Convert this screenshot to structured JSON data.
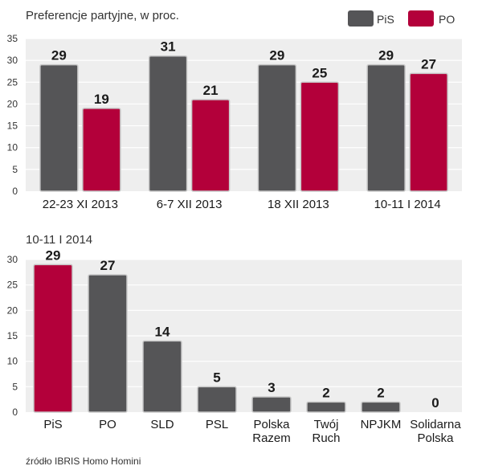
{
  "colors": {
    "pis": "#555557",
    "po": "#b3003a",
    "panel": "#eeeeee",
    "grid": "#ffffff",
    "bar_stroke": "#c8c8c8"
  },
  "source": "źródło IBRIS Homo Homini",
  "chart_data": [
    {
      "type": "bar",
      "title": "Preferencje partyjne, w proc.",
      "legend": [
        {
          "name": "PiS",
          "color": "#555557"
        },
        {
          "name": "PO",
          "color": "#b3003a"
        }
      ],
      "legend_position": "top-right",
      "categories": [
        "22-23 XI 2013",
        "6-7 XII 2013",
        "18 XII 2013",
        "10-11 I 2014"
      ],
      "series": [
        {
          "name": "PiS",
          "values": [
            29,
            31,
            29,
            29
          ]
        },
        {
          "name": "PO",
          "values": [
            19,
            21,
            25,
            27
          ]
        }
      ],
      "value_labels": [
        [
          "29",
          "31",
          "29",
          "29"
        ],
        [
          "19",
          "21",
          "25",
          "27"
        ]
      ],
      "yticks": [
        "0",
        "5",
        "10",
        "15",
        "20",
        "25",
        "30",
        "35"
      ],
      "ylim": [
        0,
        35
      ],
      "grid": true,
      "xlabel": "",
      "ylabel": ""
    },
    {
      "type": "bar",
      "title": "10-11 I 2014",
      "categories": [
        [
          "PiS"
        ],
        [
          "PO"
        ],
        [
          "SLD"
        ],
        [
          "PSL"
        ],
        [
          "Polska",
          "Razem"
        ],
        [
          "Twój",
          "Ruch"
        ],
        [
          "NPJKM"
        ],
        [
          "Solidarna",
          "Polska"
        ]
      ],
      "values": [
        29,
        27,
        14,
        5,
        3,
        2,
        2,
        0
      ],
      "value_labels": [
        "29",
        "27",
        "14",
        "5",
        "3",
        "2",
        "2",
        "0"
      ],
      "bar_colors": [
        "#b3003a",
        "#555557",
        "#555557",
        "#555557",
        "#555557",
        "#555557",
        "#555557",
        "#555557"
      ],
      "yticks": [
        "0",
        "5",
        "10",
        "15",
        "20",
        "25",
        "30"
      ],
      "ylim": [
        0,
        30
      ],
      "grid": true,
      "xlabel": "",
      "ylabel": ""
    }
  ]
}
